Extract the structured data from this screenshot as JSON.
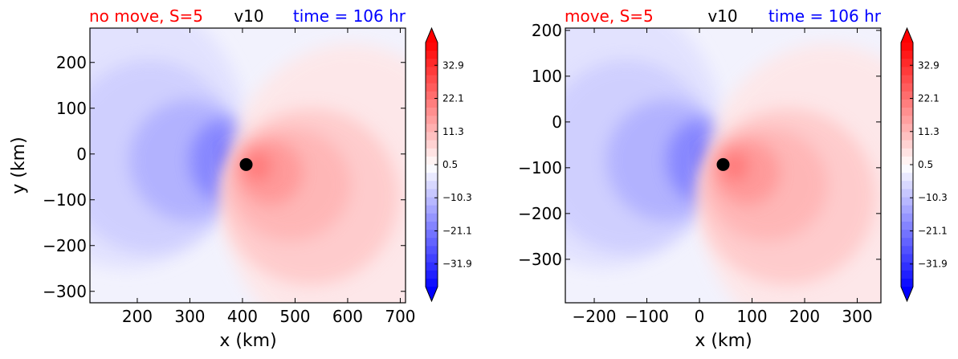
{
  "colors": {
    "left_title": "#ff0000",
    "center_title": "#000000",
    "right_title": "#0000ff",
    "negative": "#0000ff",
    "positive": "#ff0000",
    "center_marker": "#000000"
  },
  "chart_data": [
    {
      "type": "heatmap",
      "variable": "v10",
      "title_left": "no move, S=5",
      "title_center": "v10",
      "title_right": "time = 106 hr",
      "xlabel": "x (km)",
      "ylabel": "y (km)",
      "xlim": [
        110,
        710
      ],
      "ylim": [
        -325,
        275
      ],
      "xticks": [
        200,
        300,
        400,
        500,
        600,
        700
      ],
      "yticks": [
        200,
        100,
        0,
        -100,
        -200,
        -300
      ],
      "xtick_labels": [
        "200",
        "300",
        "400",
        "500",
        "600",
        "700"
      ],
      "ytick_labels": [
        "200",
        "100",
        "0",
        "−100",
        "−200",
        "−300"
      ],
      "storm_center": [
        407,
        -23
      ],
      "colorbar": {
        "range": [
          -39.3,
          40.3
        ],
        "ticks": [
          32.9,
          22.1,
          11.3,
          0.5,
          -10.3,
          -21.1,
          -31.9
        ],
        "tick_labels": [
          "32.9",
          "22.1",
          "11.3",
          "0.5",
          "−10.3",
          "−21.1",
          "−31.9"
        ],
        "extend": "both"
      }
    },
    {
      "type": "heatmap",
      "variable": "v10",
      "title_left": "move, S=5",
      "title_center": "v10",
      "title_right": "time = 106 hr",
      "xlabel": "x (km)",
      "ylabel": "",
      "xlim": [
        -255,
        345
      ],
      "ylim": [
        -395,
        205
      ],
      "xticks": [
        -200,
        -100,
        0,
        100,
        200,
        300
      ],
      "yticks": [
        200,
        100,
        0,
        -100,
        -200,
        -300
      ],
      "xtick_labels": [
        "−200",
        "−100",
        "0",
        "100",
        "200",
        "300"
      ],
      "ytick_labels": [
        "200",
        "100",
        "0",
        "−100",
        "−200",
        "−300"
      ],
      "storm_center": [
        45,
        -93
      ],
      "colorbar": {
        "range": [
          -39.3,
          40.3
        ],
        "ticks": [
          32.9,
          22.1,
          11.3,
          0.5,
          -10.3,
          -21.1,
          -31.9
        ],
        "tick_labels": [
          "32.9",
          "22.1",
          "11.3",
          "0.5",
          "−10.3",
          "−21.1",
          "−31.9"
        ],
        "extend": "both"
      }
    }
  ]
}
